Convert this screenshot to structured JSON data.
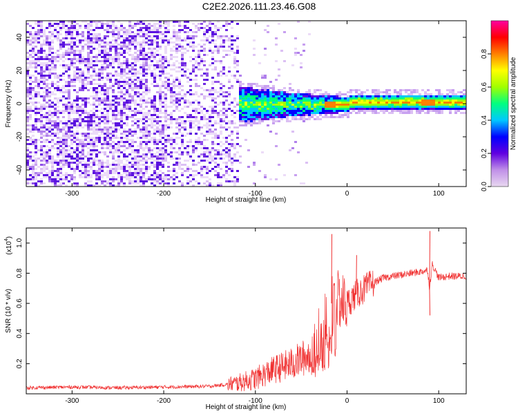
{
  "title": "C2E2.2026.111.23.46.G08",
  "chart_data": [
    {
      "type": "heatmap",
      "xlabel": "Height of straight line (km)",
      "ylabel": "Frequency (Hz)",
      "xlim": [
        -350,
        130
      ],
      "ylim": [
        -50,
        50
      ],
      "xticks": [
        -300,
        -200,
        -100,
        0,
        100
      ],
      "yticks": [
        -40,
        -20,
        0,
        20,
        40
      ],
      "colorbar": {
        "label": "Normalized spectral amplitude",
        "range": [
          0.0,
          1.0
        ],
        "ticks": [
          0.0,
          0.2,
          0.4,
          0.6,
          0.8
        ],
        "tick_labels": [
          "0.0",
          "0.2",
          "0.4",
          "0.6",
          "0.8"
        ],
        "colors": [
          "#e8d8f0",
          "#c090e8",
          "#6000e0",
          "#0000ff",
          "#00c8ff",
          "#00ff80",
          "#a0ff00",
          "#ffff00",
          "#ff8000",
          "#ff0000",
          "#ff00a0"
        ]
      },
      "description_points": [
        {
          "x": -350,
          "noise_band": [
            -50,
            50
          ]
        },
        {
          "x": -120,
          "noise_band": [
            -50,
            50
          ]
        },
        {
          "x": -100,
          "signal_band": [
            -10,
            10
          ]
        },
        {
          "x": -50,
          "signal_band": [
            -6,
            6
          ]
        },
        {
          "x": 0,
          "signal_band": [
            -3,
            5
          ]
        },
        {
          "x": 130,
          "signal_band": [
            -2,
            5
          ]
        }
      ]
    },
    {
      "type": "line",
      "xlabel": "Height of straight line (km)",
      "ylabel": "SNR (10 * v/v)",
      "y_scale_label": "(x10",
      "y_scale_exponent": "4",
      "xlim": [
        -350,
        130
      ],
      "ylim": [
        0,
        1.1
      ],
      "xticks": [
        -300,
        -200,
        -100,
        0,
        100
      ],
      "yticks": [
        0.2,
        0.4,
        0.6,
        0.8,
        1.0
      ],
      "ytick_labels": [
        "0.2",
        "0.4",
        "0.6",
        "0.8",
        "1.0"
      ],
      "series": [
        {
          "color": "#f03030",
          "x": [
            -350,
            -300,
            -250,
            -200,
            -150,
            -120,
            -100,
            -80,
            -60,
            -40,
            -30,
            -20,
            -17,
            -15,
            -10,
            0,
            10,
            20,
            30,
            40,
            50,
            60,
            70,
            80,
            88,
            90,
            93,
            100,
            110,
            120,
            130
          ],
          "y": [
            0.04,
            0.045,
            0.04,
            0.045,
            0.05,
            0.07,
            0.1,
            0.16,
            0.2,
            0.26,
            0.38,
            0.55,
            0.6,
            0.6,
            0.62,
            0.6,
            0.66,
            0.7,
            0.74,
            0.77,
            0.78,
            0.79,
            0.8,
            0.81,
            0.82,
            0.7,
            0.86,
            0.77,
            0.78,
            0.78,
            0.78
          ]
        }
      ],
      "spikes": [
        {
          "x": -17,
          "y": 1.06
        },
        {
          "x": 10,
          "y": 0.92
        },
        {
          "x": 90,
          "y": 1.08
        },
        {
          "x": 90,
          "y": 0.52
        }
      ]
    }
  ]
}
